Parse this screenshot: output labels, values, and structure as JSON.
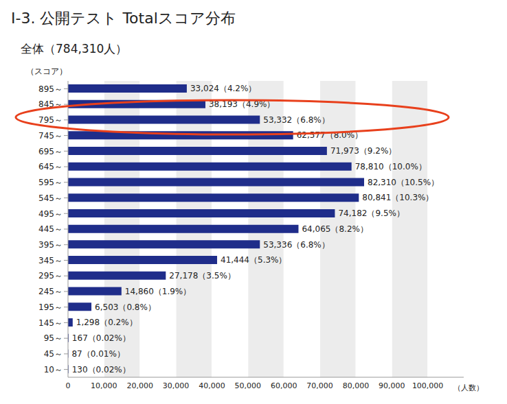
{
  "chart_data": {
    "type": "bar",
    "title": "Ⅰ-3. 公開テスト Totalスコア分布",
    "subtitle": "全体（784,310人）",
    "y_label": "（スコア）",
    "x_label": "（人数）",
    "orientation": "horizontal",
    "categories": [
      "895～",
      "845～",
      "795～",
      "745～",
      "695～",
      "645～",
      "595～",
      "545～",
      "495～",
      "445～",
      "395～",
      "345～",
      "295～",
      "245～",
      "195～",
      "145～",
      "95～",
      "45～",
      "10～"
    ],
    "values": [
      33024,
      38193,
      53332,
      62577,
      71973,
      78810,
      82310,
      80841,
      74182,
      64065,
      53336,
      41444,
      27178,
      14860,
      6503,
      1298,
      167,
      87,
      130
    ],
    "value_labels": [
      "33,024（4.2%）",
      "38,193（4.9%）",
      "53,332（6.8%）",
      "62,577（8.0%）",
      "71,973（9.2%）",
      "78,810（10.0%）",
      "82,310（10.5%）",
      "80,841（10.3%）",
      "74,182（9.5%）",
      "64,065（8.2%）",
      "53,336（6.8%）",
      "41,444（5.3%）",
      "27,178（3.5%）",
      "14,860（1.9%）",
      "6,503（0.8%）",
      "1,298（0.2%）",
      "167（0.02%）",
      "87（0.01%）",
      "130（0.02%）"
    ],
    "color": "#1f2d8a",
    "xlim": [
      0,
      110000
    ],
    "xticks": [
      0,
      {
        "value": 10000,
        "label": "10,000"
      },
      {
        "value": 20000,
        "label": "20,000"
      },
      {
        "value": 30000,
        "label": "30,000"
      },
      {
        "value": 40000,
        "label": "40,000"
      },
      {
        "value": 50000,
        "label": "50,000"
      },
      {
        "value": 60000,
        "label": "60,000"
      },
      {
        "value": 70000,
        "label": "70,000"
      },
      {
        "value": 80000,
        "label": "80,000"
      },
      {
        "value": 90000,
        "label": "90,000"
      },
      {
        "value": 100000,
        "label": "100,000"
      }
    ],
    "grid": true,
    "data_labels": true
  }
}
